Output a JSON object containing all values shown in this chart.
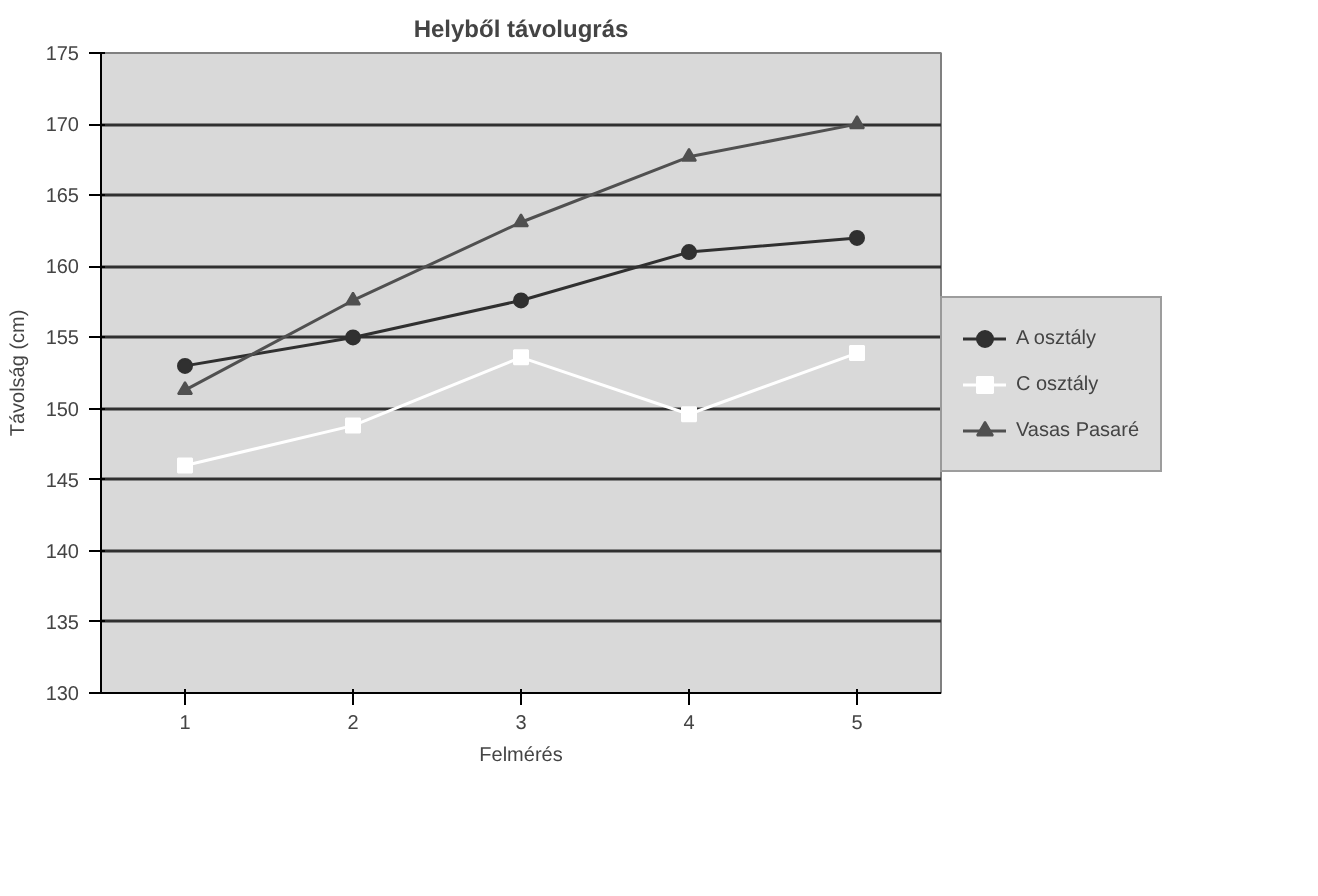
{
  "chart_data": {
    "type": "line",
    "title": "Helyből távolugrás",
    "xlabel": "Felmérés",
    "ylabel": "Távolság (cm)",
    "categories": [
      "1",
      "2",
      "3",
      "4",
      "5"
    ],
    "series": [
      {
        "name": "A osztály",
        "color": "#303030",
        "marker": "circle",
        "values": [
          153,
          155,
          157.6,
          161,
          162
        ]
      },
      {
        "name": "C osztály",
        "color": "#ffffff",
        "marker": "square",
        "values": [
          146,
          148.8,
          153.6,
          149.6,
          153.9
        ]
      },
      {
        "name": "Vasas Pasaré",
        "color": "#505050",
        "marker": "triangle",
        "values": [
          151.3,
          157.6,
          163.1,
          167.7,
          170
        ]
      }
    ],
    "ylim": [
      130,
      175
    ],
    "yticks": [
      130,
      135,
      140,
      145,
      150,
      155,
      160,
      165,
      170,
      175
    ],
    "grid": "y",
    "legend": "right"
  }
}
